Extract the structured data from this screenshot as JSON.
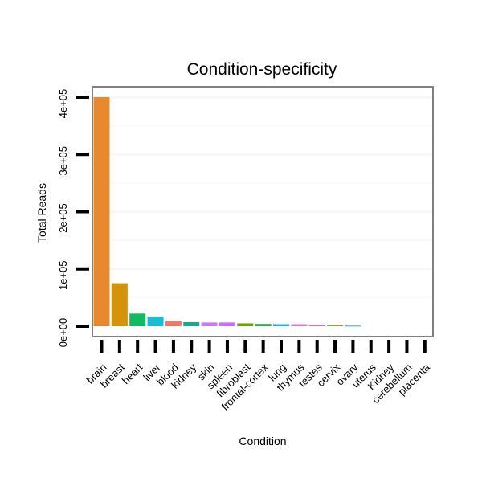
{
  "chart_data": {
    "type": "bar",
    "title": "Condition-specificity",
    "xlabel": "Condition",
    "ylabel": "Total Reads",
    "ylim": [
      0,
      420000
    ],
    "yticks": [
      0,
      100000,
      200000,
      300000,
      400000
    ],
    "ytick_labels": [
      "0e+00",
      "1e+05",
      "2e+05",
      "3e+05",
      "4e+05"
    ],
    "grid": true,
    "categories": [
      "brain",
      "breast",
      "heart",
      "liver",
      "blood",
      "kidney",
      "skin",
      "spleen",
      "fibroblast",
      "frontal-cortex",
      "lung",
      "thymus",
      "testes",
      "cervix",
      "ovary",
      "uterus",
      "Kidney",
      "cerebellum",
      "placenta"
    ],
    "values": [
      400000,
      75000,
      22000,
      17000,
      9000,
      7000,
      6500,
      6500,
      5000,
      4000,
      3500,
      3500,
      2500,
      2000,
      1000,
      0,
      0,
      0,
      0
    ],
    "colors": [
      "#E8892E",
      "#D4930A",
      "#12BA63",
      "#18BFD0",
      "#F1776F",
      "#16A98E",
      "#C77CFF",
      "#CB6CFF",
      "#69A40C",
      "#24AF3F",
      "#1AB2F0",
      "#EE6FCF",
      "#F0679E",
      "#A79E0F",
      "#14B4C9",
      "#888888",
      "#888888",
      "#888888",
      "#888888"
    ]
  }
}
